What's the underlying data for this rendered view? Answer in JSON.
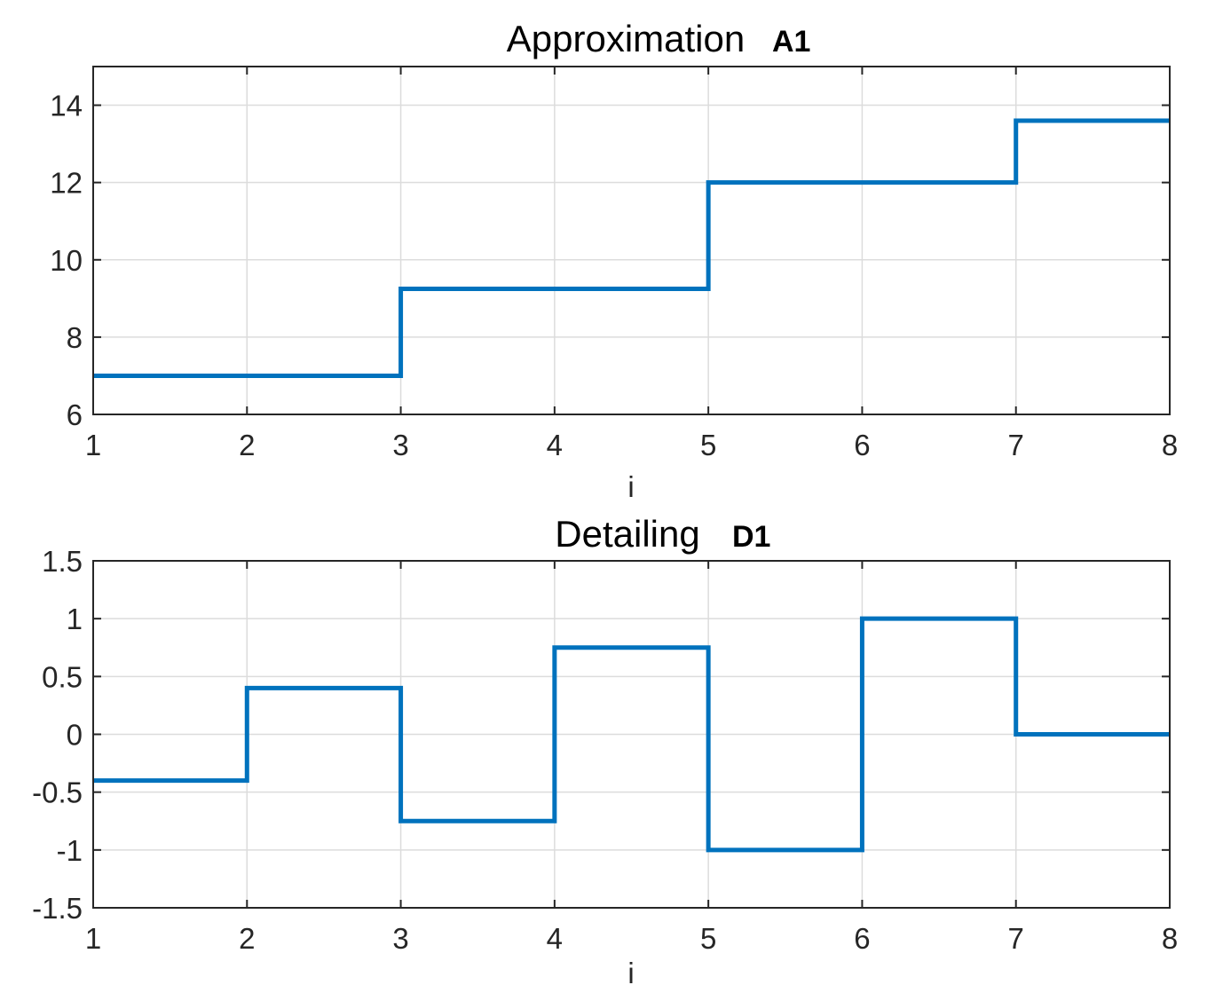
{
  "chart_data": [
    {
      "type": "line",
      "step": "post",
      "title": "Approximation",
      "title_suffix": "A1",
      "xlabel": "i",
      "ylabel": "",
      "xlim": [
        1,
        8
      ],
      "ylim": [
        6,
        15
      ],
      "xticks": [
        1,
        2,
        3,
        4,
        5,
        6,
        7,
        8
      ],
      "yticks": [
        6,
        8,
        10,
        12,
        14
      ],
      "grid": true,
      "series": [
        {
          "x": [
            1,
            2,
            3,
            4,
            5,
            6,
            7,
            8
          ],
          "y": [
            7,
            7,
            9.25,
            9.25,
            12,
            12,
            13.6,
            13.6
          ],
          "color": "#0072BD"
        }
      ]
    },
    {
      "type": "line",
      "step": "post",
      "title": "Detailing",
      "title_suffix": "D1",
      "xlabel": "i",
      "ylabel": "",
      "xlim": [
        1,
        8
      ],
      "ylim": [
        -1.5,
        1.5
      ],
      "xticks": [
        1,
        2,
        3,
        4,
        5,
        6,
        7,
        8
      ],
      "yticks": [
        -1.5,
        -1,
        -0.5,
        0,
        0.5,
        1,
        1.5
      ],
      "grid": true,
      "series": [
        {
          "x": [
            1,
            2,
            3,
            4,
            5,
            6,
            7,
            8
          ],
          "y": [
            -0.4,
            0.4,
            -0.75,
            0.75,
            -1,
            1,
            0,
            0
          ],
          "color": "#0072BD"
        }
      ]
    }
  ]
}
